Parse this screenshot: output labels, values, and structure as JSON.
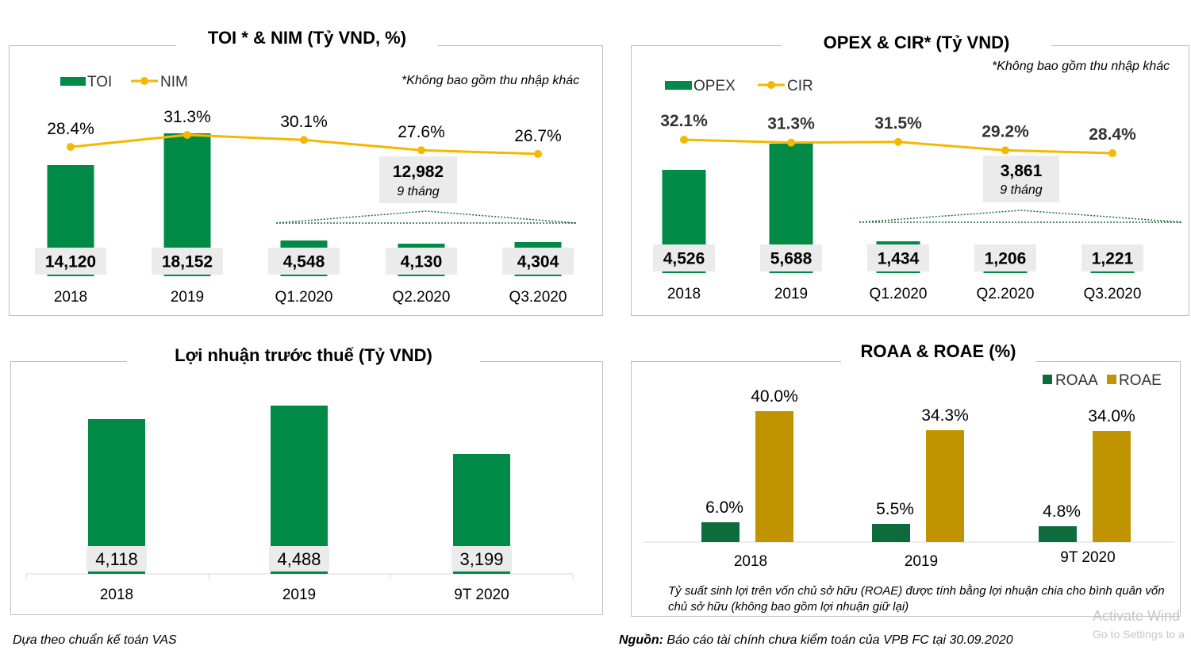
{
  "colors": {
    "green": "#008a45",
    "dark_green": "#0e6b3b",
    "gold": "#c09300",
    "line": "#f5b800",
    "label_bg": "#ebebeb",
    "grid": "#d9d9d9"
  },
  "chart_data": [
    {
      "type": "bar",
      "title": "TOI * & NIM (Tỷ VND, %)",
      "note": "*Không bao gồm thu nhập khác",
      "categories": [
        "2018",
        "2019",
        "Q1.2020",
        "Q2.2020",
        "Q3.2020"
      ],
      "series": [
        {
          "name": "TOI",
          "type": "bar",
          "values": [
            14120,
            18152,
            4548,
            4130,
            4304
          ],
          "labels": [
            "14,120",
            "18,152",
            "4,548",
            "4,130",
            "4,304"
          ]
        },
        {
          "name": "NIM",
          "type": "line",
          "values": [
            28.4,
            31.3,
            30.1,
            27.6,
            26.7
          ],
          "labels": [
            "28.4%",
            "31.3%",
            "30.1%",
            "27.6%",
            "26.7%"
          ]
        }
      ],
      "callout": {
        "value": "12,982",
        "label": "9 tháng"
      }
    },
    {
      "type": "bar",
      "title": "OPEX & CIR* (Tỷ VND)",
      "note": "*Không bao gồm thu nhập khác",
      "categories": [
        "2018",
        "2019",
        "Q1.2020",
        "Q2.2020",
        "Q3.2020"
      ],
      "series": [
        {
          "name": "OPEX",
          "type": "bar",
          "values": [
            4526,
            5688,
            1434,
            1206,
            1221
          ],
          "labels": [
            "4,526",
            "5,688",
            "1,434",
            "1,206",
            "1,221"
          ]
        },
        {
          "name": "CIR",
          "type": "line",
          "values": [
            32.1,
            31.3,
            31.5,
            29.2,
            28.4
          ],
          "labels": [
            "32.1%",
            "31.3%",
            "31.5%",
            "29.2%",
            "28.4%"
          ]
        }
      ],
      "callout": {
        "value": "3,861",
        "label": "9 tháng"
      }
    },
    {
      "type": "bar",
      "title": "Lợi nhuận trước thuế (Tỷ VND)",
      "categories": [
        "2018",
        "2019",
        "9T 2020"
      ],
      "values": [
        4118,
        4488,
        3199
      ],
      "labels": [
        "4,118",
        "4,488",
        "3,199"
      ]
    },
    {
      "type": "bar",
      "title": "ROAA & ROAE (%)",
      "categories": [
        "2018",
        "2019",
        "9T 2020"
      ],
      "series": [
        {
          "name": "ROAA",
          "values": [
            6.0,
            5.5,
            4.8
          ],
          "labels": [
            "6.0%",
            "5.5%",
            "4.8%"
          ]
        },
        {
          "name": "ROAE",
          "values": [
            40.0,
            34.3,
            34.0
          ],
          "labels": [
            "40.0%",
            "34.3%",
            "34.0%"
          ]
        }
      ],
      "note": "Tỷ suất sinh lợi trên vốn chủ sở hữu (ROAE) được tính bằng lợi nhuận chia cho bình quân vốn chủ sở hữu (không bao gồm lợi nhuận giữ lại)"
    }
  ],
  "footer": {
    "left": "Dựa theo chuẩn kế toán VAS",
    "source_label": "Nguồn:",
    "source_text": " Báo cáo tài chính chưa kiểm toán của VPB FC tại 30.09.2020"
  },
  "watermark": {
    "line1": "Activate Wind",
    "line2": "Go to Settings to a"
  }
}
